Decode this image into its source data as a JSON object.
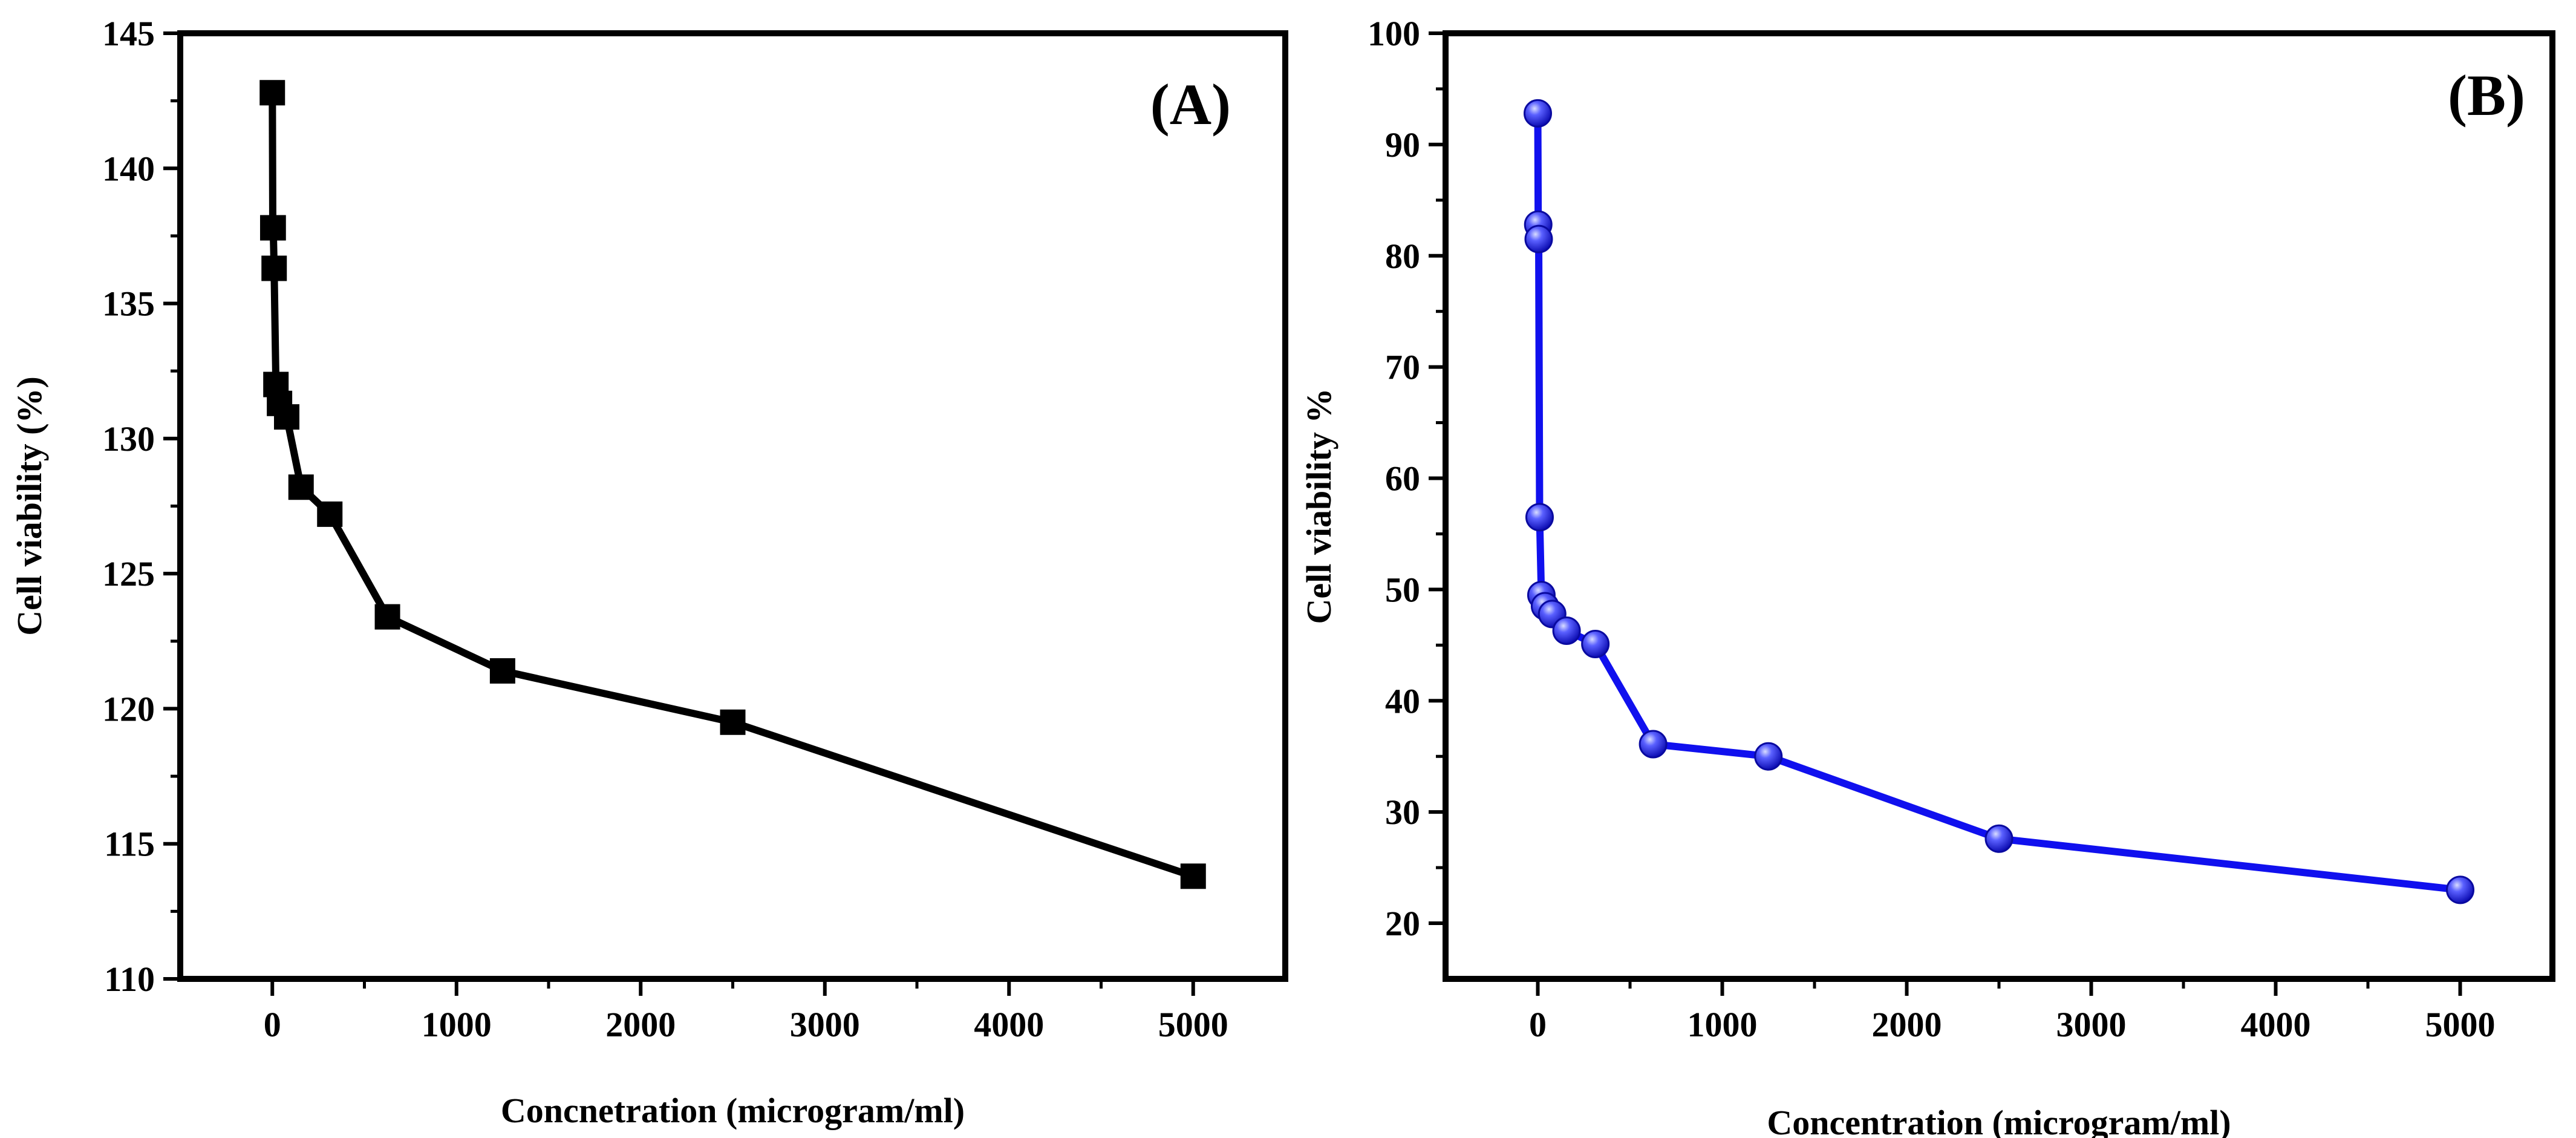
{
  "chart_data": [
    {
      "type": "line",
      "panel_label": "(A)",
      "title": "",
      "xlabel": "Concnetration (microgram/ml)",
      "ylabel": "Cell viability (%)",
      "xlim": [
        -500,
        5500
      ],
      "ylim": [
        110,
        145
      ],
      "xticks": [
        0,
        1000,
        2000,
        3000,
        4000,
        5000
      ],
      "xtick_labels": [
        "0",
        "1000",
        "2000",
        "3000",
        "4000",
        "5000"
      ],
      "yticks": [
        110,
        115,
        120,
        125,
        130,
        135,
        140,
        145
      ],
      "ytick_labels": [
        "110",
        "115",
        "120",
        "125",
        "130",
        "135",
        "140",
        "145"
      ],
      "marker": "square",
      "color": "#000000",
      "grid": false,
      "series": [
        {
          "name": "Cell viability",
          "x": [
            0,
            2.4,
            4.9,
            9.8,
            19.5,
            39,
            78,
            156,
            312,
            625,
            1250,
            2500,
            5000
          ],
          "y": [
            142.8,
            137.8,
            137.8,
            136.3,
            132.0,
            131.3,
            130.8,
            128.2,
            127.2,
            123.4,
            121.4,
            119.5,
            113.8
          ]
        }
      ]
    },
    {
      "type": "line",
      "panel_label": "(B)",
      "title": "",
      "xlabel": "Concentration (microgram/ml)",
      "ylabel": "Cell viability %",
      "xlim": [
        -500,
        5500
      ],
      "ylim": [
        15,
        100
      ],
      "xticks": [
        0,
        1000,
        2000,
        3000,
        4000,
        5000
      ],
      "xtick_labels": [
        "0",
        "1000",
        "2000",
        "3000",
        "4000",
        "5000"
      ],
      "yticks": [
        20,
        30,
        40,
        50,
        60,
        70,
        80,
        90,
        100
      ],
      "ytick_labels": [
        "20",
        "30",
        "40",
        "50",
        "60",
        "70",
        "80",
        "90",
        "100"
      ],
      "marker": "sphere",
      "color": "#1010ee",
      "grid": false,
      "series": [
        {
          "name": "Cell viability",
          "x": [
            0,
            2.4,
            4.9,
            9.8,
            19.5,
            39,
            78,
            156,
            312,
            625,
            1250,
            2500,
            5000
          ],
          "y": [
            92.8,
            82.8,
            81.5,
            56.5,
            49.5,
            48.5,
            47.8,
            46.3,
            45.1,
            36.1,
            35.0,
            27.6,
            23.0
          ]
        }
      ]
    }
  ]
}
